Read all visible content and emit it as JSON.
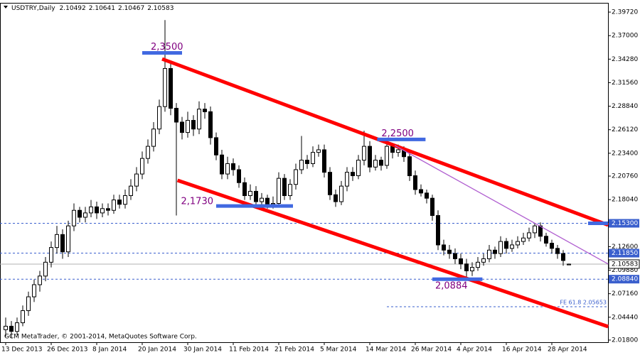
{
  "chart_data": {
    "type": "candlestick",
    "title": "USDTRY,Daily",
    "footer": "GCM MetaTrader, © 2001-2014, MetaQuotes Software Corp.",
    "up_color": "#ffffff",
    "down_color": "#000000",
    "categories": [
      "13 Dec 2013",
      null,
      null,
      null,
      null,
      null,
      null,
      null,
      "26 Dec 2013",
      null,
      null,
      null,
      null,
      null,
      null,
      null,
      "8 Jan 2014",
      null,
      null,
      null,
      null,
      null,
      null,
      null,
      "20 Jan 2014",
      null,
      null,
      null,
      null,
      null,
      null,
      null,
      "30 Jan 2014",
      null,
      null,
      null,
      null,
      null,
      null,
      null,
      "11 Feb 2014",
      null,
      null,
      null,
      null,
      null,
      null,
      null,
      "21 Feb 2014",
      null,
      null,
      null,
      null,
      null,
      null,
      null,
      "5 Mar 2014",
      null,
      null,
      null,
      null,
      null,
      null,
      null,
      "14 Mar 2014",
      null,
      null,
      null,
      null,
      null,
      null,
      null,
      "26 Mar 2014",
      null,
      null,
      null,
      null,
      null,
      null,
      null,
      "4 Apr 2014",
      null,
      null,
      null,
      null,
      null,
      null,
      null,
      "16 Apr 2014",
      null,
      null,
      null,
      null,
      null,
      null,
      null,
      "28 Apr 2014",
      null,
      null,
      null
    ],
    "ohlc": [
      [
        2.03,
        2.044,
        2.022,
        2.034
      ],
      [
        2.034,
        2.04,
        2.02,
        2.028
      ],
      [
        2.028,
        2.044,
        2.024,
        2.038
      ],
      [
        2.038,
        2.058,
        2.034,
        2.052
      ],
      [
        2.052,
        2.074,
        2.046,
        2.068
      ],
      [
        2.068,
        2.088,
        2.062,
        2.082
      ],
      [
        2.082,
        2.098,
        2.074,
        2.092
      ],
      [
        2.092,
        2.114,
        2.086,
        2.108
      ],
      [
        2.108,
        2.132,
        2.102,
        2.125
      ],
      [
        2.125,
        2.15,
        2.118,
        2.14
      ],
      [
        2.14,
        2.146,
        2.112,
        2.12
      ],
      [
        2.12,
        2.156,
        2.114,
        2.15
      ],
      [
        2.15,
        2.176,
        2.144,
        2.168
      ],
      [
        2.168,
        2.172,
        2.154,
        2.16
      ],
      [
        2.16,
        2.172,
        2.154,
        2.165
      ],
      [
        2.165,
        2.18,
        2.16,
        2.172
      ],
      [
        2.172,
        2.178,
        2.158,
        2.165
      ],
      [
        2.165,
        2.176,
        2.16,
        2.17
      ],
      [
        2.17,
        2.176,
        2.162,
        2.168
      ],
      [
        2.168,
        2.186,
        2.164,
        2.18
      ],
      [
        2.18,
        2.186,
        2.17,
        2.175
      ],
      [
        2.175,
        2.192,
        2.17,
        2.185
      ],
      [
        2.185,
        2.204,
        2.18,
        2.196
      ],
      [
        2.196,
        2.218,
        2.19,
        2.21
      ],
      [
        2.21,
        2.236,
        2.204,
        2.228
      ],
      [
        2.228,
        2.25,
        2.222,
        2.242
      ],
      [
        2.242,
        2.27,
        2.236,
        2.262
      ],
      [
        2.262,
        2.296,
        2.256,
        2.288
      ],
      [
        2.288,
        2.388,
        2.282,
        2.332
      ],
      [
        2.332,
        2.34,
        2.278,
        2.286
      ],
      [
        2.286,
        2.292,
        2.162,
        2.27
      ],
      [
        2.27,
        2.276,
        2.25,
        2.258
      ],
      [
        2.258,
        2.282,
        2.252,
        2.272
      ],
      [
        2.272,
        2.278,
        2.254,
        2.262
      ],
      [
        2.262,
        2.294,
        2.256,
        2.285
      ],
      [
        2.285,
        2.292,
        2.274,
        2.282
      ],
      [
        2.282,
        2.288,
        2.244,
        2.252
      ],
      [
        2.252,
        2.258,
        2.226,
        2.232
      ],
      [
        2.232,
        2.238,
        2.204,
        2.21
      ],
      [
        2.21,
        2.23,
        2.204,
        2.222
      ],
      [
        2.222,
        2.228,
        2.208,
        2.215
      ],
      [
        2.215,
        2.22,
        2.194,
        2.2
      ],
      [
        2.2,
        2.206,
        2.18,
        2.185
      ],
      [
        2.185,
        2.198,
        2.18,
        2.19
      ],
      [
        2.19,
        2.196,
        2.172,
        2.178
      ],
      [
        2.178,
        2.188,
        2.172,
        2.182
      ],
      [
        2.182,
        2.186,
        2.17,
        2.175
      ],
      [
        2.175,
        2.184,
        2.17,
        2.176
      ],
      [
        2.176,
        2.212,
        2.172,
        2.205
      ],
      [
        2.205,
        2.21,
        2.18,
        2.185
      ],
      [
        2.185,
        2.204,
        2.18,
        2.198
      ],
      [
        2.198,
        2.222,
        2.192,
        2.215
      ],
      [
        2.215,
        2.254,
        2.21,
        2.226
      ],
      [
        2.226,
        2.232,
        2.216,
        2.222
      ],
      [
        2.222,
        2.242,
        2.218,
        2.235
      ],
      [
        2.235,
        2.244,
        2.23,
        2.238
      ],
      [
        2.238,
        2.244,
        2.206,
        2.212
      ],
      [
        2.212,
        2.218,
        2.18,
        2.186
      ],
      [
        2.186,
        2.192,
        2.172,
        2.178
      ],
      [
        2.178,
        2.202,
        2.174,
        2.196
      ],
      [
        2.196,
        2.218,
        2.19,
        2.212
      ],
      [
        2.212,
        2.218,
        2.202,
        2.208
      ],
      [
        2.208,
        2.232,
        2.204,
        2.226
      ],
      [
        2.226,
        2.26,
        2.22,
        2.242
      ],
      [
        2.242,
        2.248,
        2.212,
        2.218
      ],
      [
        2.218,
        2.232,
        2.214,
        2.226
      ],
      [
        2.226,
        2.23,
        2.214,
        2.22
      ],
      [
        2.22,
        2.25,
        2.216,
        2.242
      ],
      [
        2.242,
        2.246,
        2.228,
        2.235
      ],
      [
        2.235,
        2.244,
        2.23,
        2.238
      ],
      [
        2.238,
        2.242,
        2.224,
        2.23
      ],
      [
        2.23,
        2.236,
        2.202,
        2.208
      ],
      [
        2.208,
        2.214,
        2.186,
        2.192
      ],
      [
        2.192,
        2.198,
        2.184,
        2.188
      ],
      [
        2.188,
        2.192,
        2.176,
        2.182
      ],
      [
        2.182,
        2.186,
        2.156,
        2.162
      ],
      [
        2.162,
        2.168,
        2.122,
        2.128
      ],
      [
        2.128,
        2.134,
        2.116,
        2.122
      ],
      [
        2.122,
        2.128,
        2.112,
        2.118
      ],
      [
        2.118,
        2.124,
        2.106,
        2.112
      ],
      [
        2.112,
        2.118,
        2.1,
        2.106
      ],
      [
        2.106,
        2.112,
        2.0884,
        2.098
      ],
      [
        2.098,
        2.108,
        2.092,
        2.102
      ],
      [
        2.102,
        2.114,
        2.098,
        2.108
      ],
      [
        2.108,
        2.118,
        2.104,
        2.112
      ],
      [
        2.112,
        2.128,
        2.108,
        2.122
      ],
      [
        2.122,
        2.126,
        2.112,
        2.118
      ],
      [
        2.118,
        2.138,
        2.114,
        2.132
      ],
      [
        2.132,
        2.136,
        2.118,
        2.124
      ],
      [
        2.124,
        2.134,
        2.12,
        2.128
      ],
      [
        2.128,
        2.138,
        2.124,
        2.132
      ],
      [
        2.132,
        2.142,
        2.128,
        2.136
      ],
      [
        2.136,
        2.148,
        2.132,
        2.142
      ],
      [
        2.142,
        2.153,
        2.136,
        2.15
      ],
      [
        2.15,
        2.154,
        2.132,
        2.138
      ],
      [
        2.138,
        2.142,
        2.126,
        2.13
      ],
      [
        2.13,
        2.134,
        2.118,
        2.124
      ],
      [
        2.124,
        2.128,
        2.112,
        2.118
      ],
      [
        2.118,
        2.122,
        2.104,
        2.11
      ],
      [
        2.10492,
        2.10641,
        2.10467,
        2.10583
      ]
    ],
    "ylim": [
      2.0155,
      2.4079
    ],
    "yticks": [
      {
        "value": 2.3972,
        "label": "2.39720"
      },
      {
        "value": 2.37,
        "label": "2.37000"
      },
      {
        "value": 2.3428,
        "label": "2.34280"
      },
      {
        "value": 2.3156,
        "label": "2.31560"
      },
      {
        "value": 2.2884,
        "label": "2.28840"
      },
      {
        "value": 2.2612,
        "label": "2.26120"
      },
      {
        "value": 2.234,
        "label": "2.23400"
      },
      {
        "value": 2.2076,
        "label": "2.20760"
      },
      {
        "value": 2.1804,
        "label": "2.18040"
      },
      {
        "value": 2.126,
        "label": "2.12600"
      },
      {
        "value": 2.0988,
        "label": "2.09880"
      },
      {
        "value": 2.0716,
        "label": "2.07160"
      },
      {
        "value": 2.0444,
        "label": "2.04440"
      },
      {
        "value": 2.018,
        "label": "2.01800"
      }
    ],
    "levels": [
      {
        "value": 2.153,
        "label": "2.15300"
      },
      {
        "value": 2.1185,
        "label": "2.11850"
      },
      {
        "value": 2.0884,
        "label": "2.08840"
      }
    ],
    "level_color": "#3a5fcd",
    "fe_level": {
      "value": 2.05653,
      "label": "FE 61.8 2.05653",
      "x": 67
    },
    "annotations": [
      {
        "value": 2.35,
        "label": "2,3500",
        "x": [
          24,
          31
        ]
      },
      {
        "value": 2.25,
        "label": "2,2500",
        "x": [
          65.3,
          73.8
        ]
      },
      {
        "value": 2.173,
        "label": "2,1730",
        "x": [
          37,
          50.5
        ]
      },
      {
        "value": 2.0884,
        "label": "2,0884",
        "x": [
          75,
          83.8
        ]
      }
    ],
    "annotation_color": "#4169e1",
    "annotation_text_color": "#800080",
    "trend_lines": [
      {
        "color": "#ff0000",
        "points": [
          [
            27.5,
            2.343
          ],
          [
            105.9,
            2.151
          ]
        ]
      },
      {
        "color": "#ff0000",
        "points": [
          [
            30.2,
            2.2027
          ],
          [
            105.9,
            2.0336
          ]
        ]
      },
      {
        "color": "#b05fd0",
        "points": [
          [
            68.4,
            2.243
          ],
          [
            105.9,
            2.106
          ]
        ]
      }
    ]
  }
}
